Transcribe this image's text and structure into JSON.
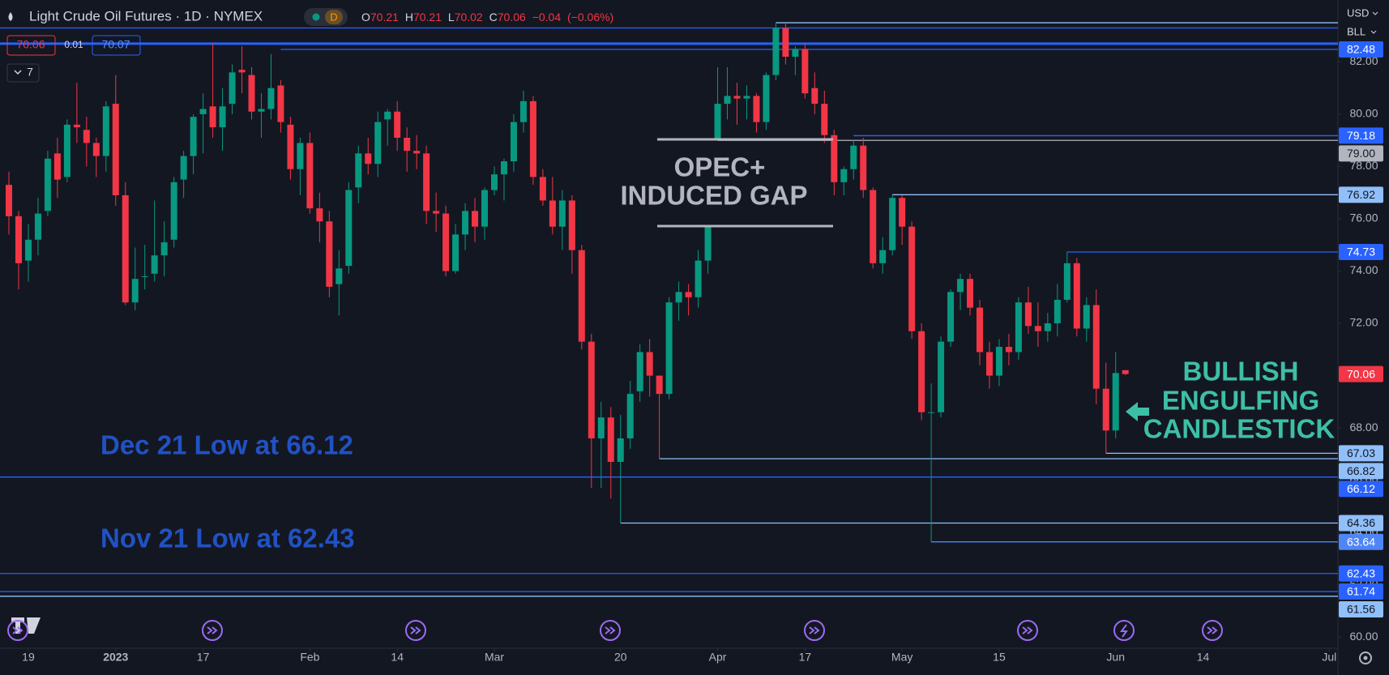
{
  "chart_data": {
    "type": "candlestick",
    "title": "Light Crude Oil Futures · 1D · NYMEX",
    "interval_badge": "D",
    "ohlc_letters": [
      "O",
      "H",
      "L",
      "C"
    ],
    "change": "−0.04",
    "change_pct": "(−0.06%)",
    "bid": 70.06,
    "spread": 0.01,
    "ask": 70.07,
    "indicator_count": 7,
    "currency": "USD",
    "unit": "BLL",
    "up_color": "#089981",
    "down_color": "#f23645",
    "x": [
      "2022-12-15",
      "2022-12-16",
      "2022-12-19",
      "2022-12-20",
      "2022-12-21",
      "2022-12-22",
      "2022-12-23",
      "2022-12-27",
      "2022-12-28",
      "2022-12-29",
      "2022-12-30",
      "2023-01-03",
      "2023-01-04",
      "2023-01-05",
      "2023-01-06",
      "2023-01-09",
      "2023-01-10",
      "2023-01-11",
      "2023-01-12",
      "2023-01-13",
      "2023-01-17",
      "2023-01-18",
      "2023-01-19",
      "2023-01-20",
      "2023-01-23",
      "2023-01-24",
      "2023-01-25",
      "2023-01-26",
      "2023-01-27",
      "2023-01-30",
      "2023-01-31",
      "2023-02-01",
      "2023-02-02",
      "2023-02-03",
      "2023-02-06",
      "2023-02-07",
      "2023-02-08",
      "2023-02-09",
      "2023-02-10",
      "2023-02-13",
      "2023-02-14",
      "2023-02-15",
      "2023-02-16",
      "2023-02-17",
      "2023-02-21",
      "2023-02-22",
      "2023-02-23",
      "2023-02-24",
      "2023-02-27",
      "2023-02-28",
      "2023-03-01",
      "2023-03-02",
      "2023-03-03",
      "2023-03-06",
      "2023-03-07",
      "2023-03-08",
      "2023-03-09",
      "2023-03-10",
      "2023-03-13",
      "2023-03-14",
      "2023-03-15",
      "2023-03-16",
      "2023-03-17",
      "2023-03-20",
      "2023-03-21",
      "2023-03-22",
      "2023-03-23",
      "2023-03-24",
      "2023-03-27",
      "2023-03-28",
      "2023-03-29",
      "2023-03-30",
      "2023-03-31",
      "2023-04-03",
      "2023-04-04",
      "2023-04-05",
      "2023-04-06",
      "2023-04-10",
      "2023-04-11",
      "2023-04-12",
      "2023-04-13",
      "2023-04-14",
      "2023-04-17",
      "2023-04-18",
      "2023-04-19",
      "2023-04-20",
      "2023-04-21",
      "2023-04-24",
      "2023-04-25",
      "2023-04-26",
      "2023-04-27",
      "2023-04-28",
      "2023-05-01",
      "2023-05-02",
      "2023-05-03",
      "2023-05-04",
      "2023-05-05",
      "2023-05-08",
      "2023-05-09",
      "2023-05-10",
      "2023-05-11",
      "2023-05-12",
      "2023-05-15",
      "2023-05-16",
      "2023-05-17",
      "2023-05-18",
      "2023-05-19",
      "2023-05-22",
      "2023-05-23",
      "2023-05-24",
      "2023-05-25",
      "2023-05-26",
      "2023-05-30",
      "2023-05-31",
      "2023-06-01",
      "2023-06-02"
    ],
    "open": [
      77.3,
      76.1,
      74.4,
      75.2,
      76.3,
      78.5,
      77.6,
      79.6,
      79.4,
      78.9,
      78.4,
      80.4,
      76.9,
      72.8,
      73.8,
      73.9,
      74.6,
      75.2,
      77.5,
      78.4,
      80.0,
      80.3,
      79.5,
      80.4,
      81.7,
      81.5,
      80.1,
      80.2,
      81.1,
      79.6,
      77.9,
      78.9,
      76.4,
      75.9,
      73.5,
      74.2,
      77.2,
      78.5,
      78.1,
      79.8,
      80.1,
      79.1,
      78.6,
      78.5,
      76.3,
      76.2,
      74.0,
      75.4,
      76.3,
      75.7,
      77.1,
      77.7,
      78.2,
      79.7,
      80.5,
      77.6,
      76.7,
      75.7,
      76.7,
      74.8,
      71.3,
      67.6,
      68.4,
      66.7,
      67.6,
      69.4,
      70.9,
      70.0,
      69.3,
      72.8,
      73.2,
      73.0,
      74.4,
      79.0,
      80.4,
      80.7,
      80.6,
      80.7,
      79.7,
      81.5,
      83.3,
      82.2,
      82.5,
      81.0,
      80.4,
      79.2,
      77.4,
      77.9,
      78.8,
      77.1,
      74.3,
      74.8,
      76.8,
      75.7,
      71.7,
      68.6,
      68.6,
      71.3,
      73.2,
      73.7,
      72.6,
      70.9,
      70.0,
      71.1,
      70.9,
      72.8,
      71.9,
      71.7,
      72.0,
      72.9,
      74.3,
      71.8,
      72.7,
      69.5,
      67.9,
      70.21
    ],
    "high": [
      77.8,
      76.3,
      75.8,
      76.8,
      78.6,
      79.1,
      79.8,
      81.2,
      79.9,
      79.1,
      80.5,
      81.5,
      77.4,
      74.9,
      75.0,
      76.7,
      75.9,
      77.6,
      78.6,
      80.0,
      80.8,
      82.7,
      81.0,
      81.9,
      82.6,
      81.8,
      80.8,
      82.3,
      81.3,
      79.9,
      79.1,
      79.3,
      77.0,
      76.3,
      74.8,
      77.4,
      78.8,
      79.1,
      80.1,
      80.2,
      80.5,
      79.5,
      79.2,
      78.8,
      77.0,
      76.5,
      75.8,
      76.6,
      76.8,
      77.2,
      78.0,
      78.3,
      80.0,
      80.9,
      80.7,
      77.9,
      77.6,
      77.1,
      76.9,
      75.0,
      71.6,
      69.0,
      68.8,
      68.5,
      69.8,
      71.2,
      71.4,
      70.0,
      73.0,
      73.6,
      73.5,
      74.8,
      75.7,
      81.8,
      81.8,
      81.2,
      81.1,
      80.8,
      81.6,
      83.5,
      83.5,
      82.6,
      82.7,
      81.6,
      80.9,
      79.4,
      78.0,
      79.0,
      79.1,
      77.2,
      75.3,
      76.92,
      76.9,
      75.9,
      72.0,
      69.7,
      71.5,
      73.3,
      73.9,
      73.9,
      72.9,
      71.3,
      71.4,
      71.6,
      73.0,
      73.4,
      72.8,
      72.4,
      73.5,
      74.73,
      74.5,
      73.0,
      73.3,
      70.5,
      70.9,
      70.21
    ],
    "low": [
      75.4,
      73.3,
      73.6,
      74.6,
      76.1,
      76.8,
      77.4,
      78.9,
      78.0,
      77.6,
      77.8,
      76.5,
      72.7,
      72.5,
      73.3,
      73.6,
      73.8,
      74.9,
      76.8,
      77.7,
      78.5,
      79.1,
      78.6,
      80.0,
      80.8,
      79.8,
      79.1,
      79.8,
      79.3,
      77.5,
      76.9,
      76.2,
      75.1,
      73.0,
      72.3,
      73.9,
      76.6,
      77.7,
      77.6,
      78.8,
      78.6,
      77.8,
      77.9,
      75.8,
      75.5,
      73.8,
      73.9,
      74.8,
      75.1,
      75.2,
      76.9,
      76.7,
      77.8,
      79.3,
      77.3,
      76.5,
      75.4,
      74.8,
      73.9,
      71.0,
      65.7,
      65.7,
      65.3,
      64.36,
      67.2,
      69.0,
      69.2,
      66.82,
      69.1,
      72.1,
      72.3,
      72.6,
      73.9,
      79.0,
      79.8,
      79.6,
      79.8,
      79.3,
      79.4,
      81.3,
      81.9,
      81.5,
      80.6,
      80.0,
      78.9,
      76.9,
      76.9,
      77.5,
      76.8,
      74.1,
      73.9,
      74.6,
      75.0,
      71.4,
      68.3,
      63.64,
      68.4,
      71.1,
      72.5,
      72.3,
      70.4,
      69.5,
      69.6,
      70.4,
      70.6,
      71.6,
      71.1,
      71.3,
      71.5,
      72.8,
      71.5,
      71.3,
      68.9,
      67.03,
      67.6,
      70.02
    ],
    "close": [
      76.1,
      74.3,
      75.2,
      76.2,
      78.3,
      77.5,
      79.6,
      79.5,
      78.9,
      78.4,
      80.3,
      76.9,
      72.8,
      73.7,
      73.8,
      74.6,
      75.1,
      77.4,
      78.4,
      79.9,
      80.2,
      79.5,
      80.3,
      81.6,
      81.6,
      80.1,
      80.2,
      81.0,
      79.7,
      77.9,
      78.9,
      76.4,
      75.9,
      73.4,
      74.1,
      77.1,
      78.5,
      78.1,
      79.7,
      80.1,
      79.1,
      78.6,
      78.5,
      76.3,
      76.2,
      74.0,
      75.4,
      76.3,
      75.7,
      77.1,
      77.7,
      78.2,
      79.7,
      80.5,
      77.6,
      76.7,
      75.7,
      76.7,
      74.8,
      71.3,
      67.6,
      68.4,
      66.7,
      67.6,
      69.3,
      70.9,
      70.0,
      69.3,
      72.8,
      73.2,
      73.0,
      74.4,
      75.7,
      80.4,
      80.7,
      80.6,
      80.7,
      79.7,
      81.5,
      83.3,
      82.2,
      82.5,
      80.8,
      80.4,
      79.2,
      77.4,
      77.9,
      78.8,
      77.1,
      74.3,
      74.8,
      76.8,
      75.7,
      71.7,
      68.6,
      68.6,
      71.3,
      73.2,
      73.7,
      72.6,
      70.9,
      70.0,
      71.1,
      70.9,
      72.8,
      71.9,
      71.7,
      72.0,
      72.9,
      74.3,
      71.8,
      72.7,
      69.5,
      67.9,
      70.1,
      70.06
    ],
    "ylim": [
      59.57,
      84.37
    ],
    "yticks": [
      {
        "value": 60,
        "label": "60.00"
      },
      {
        "value": 62,
        "label": "62.00"
      },
      {
        "value": 64,
        "label": "64.00"
      },
      {
        "value": 66,
        "label": "66.00"
      },
      {
        "value": 68,
        "label": "68.00"
      },
      {
        "value": 70,
        "label": "70.00"
      },
      {
        "value": 72,
        "label": "72.00"
      },
      {
        "value": 74,
        "label": "74.00"
      },
      {
        "value": 76,
        "label": "76.00"
      },
      {
        "value": 78,
        "label": "78.00"
      },
      {
        "value": 80,
        "label": "80.00"
      },
      {
        "value": 82,
        "label": "82.00"
      }
    ],
    "xticks": [
      {
        "value": "2022-12-19",
        "label": "19"
      },
      {
        "value": "2023-01-03",
        "label": "2023"
      },
      {
        "value": "2023-01-17",
        "label": "17"
      },
      {
        "value": "2023-02-01",
        "label": "Feb"
      },
      {
        "value": "2023-02-14",
        "label": "14"
      },
      {
        "value": "2023-03-01",
        "label": "Mar"
      },
      {
        "value": "2023-03-20",
        "label": "20"
      },
      {
        "value": "2023-04-03",
        "label": "Apr"
      },
      {
        "value": "2023-04-17",
        "label": "17"
      },
      {
        "value": "2023-05-01",
        "label": "May"
      },
      {
        "value": "2023-05-15",
        "label": "15"
      },
      {
        "value": "2023-06-01",
        "label": "Jun"
      },
      {
        "value": "2023-06-14",
        "label": "14"
      },
      {
        "value": "2023-07-03",
        "label": "Jul"
      }
    ],
    "grid": false,
    "levels": [
      {
        "value": 83.5,
        "color": "#90bff9",
        "from": "2023-04-12",
        "badge": false
      },
      {
        "value": 83.3,
        "color": "#2962ff",
        "badge": false
      },
      {
        "value": 82.7,
        "color": "#2962ff",
        "badge": false,
        "width": 3
      },
      {
        "value": 82.48,
        "color": "#2962ff",
        "from": "2023-01-27",
        "badge": true,
        "text_color": "#ffffff"
      },
      {
        "value": 79.18,
        "color": "#2962ff",
        "from": "2023-04-24",
        "badge": true,
        "text_color": "#ffffff"
      },
      {
        "value": 79,
        "label": "79.00",
        "color": "#b2b5be",
        "from": "2023-04-03",
        "badge": true,
        "text_color": "#131722"
      },
      {
        "value": 76.92,
        "color": "#90bff9",
        "from": "2023-04-28",
        "badge": true,
        "text_color": "#131722"
      },
      {
        "value": 74.73,
        "color": "#2962ff",
        "from": "2023-05-24",
        "badge": true,
        "text_color": "#ffffff"
      },
      {
        "value": 67.03,
        "color": "#90bff9",
        "from": "2023-05-31",
        "badge": true,
        "text_color": "#131722"
      },
      {
        "value": 66.82,
        "color": "#90bff9",
        "from": "2023-03-24",
        "badge": true,
        "text_color": "#131722"
      },
      {
        "value": 66.12,
        "color": "#2962ff",
        "badge": true,
        "text_color": "#ffffff"
      },
      {
        "value": 64.36,
        "color": "#90bff9",
        "from": "2023-03-20",
        "badge": true,
        "text_color": "#131722"
      },
      {
        "value": 63.64,
        "color": "#4f86f7",
        "from": "2023-05-04",
        "badge": true,
        "text_color": "#ffffff"
      },
      {
        "value": 62.43,
        "color": "#2962ff",
        "badge": true,
        "text_color": "#ffffff"
      },
      {
        "value": 61.74,
        "color": "#2962ff",
        "badge": true,
        "text_color": "#ffffff"
      },
      {
        "value": 61.56,
        "color": "#90bff9",
        "badge": true,
        "text_color": "#131722"
      }
    ],
    "annotations": {
      "gap": [
        "OPEC+",
        "INDUCED GAP"
      ],
      "pattern": [
        "BULLISH",
        "ENGULFING",
        "CANDLESTICK"
      ],
      "dec_low": "Dec 21 Low at 66.12",
      "nov_low": "Nov 21 Low at 62.43"
    }
  }
}
